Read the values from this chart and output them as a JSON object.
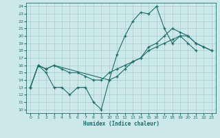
{
  "xlabel": "Humidex (Indice chaleur)",
  "background_color": "#cde8e8",
  "line_color": "#1a6b6b",
  "grid_color": "#a8cccc",
  "xlim": [
    -0.5,
    23.5
  ],
  "ylim": [
    9.5,
    24.5
  ],
  "yticks": [
    10,
    11,
    12,
    13,
    14,
    15,
    16,
    17,
    18,
    19,
    20,
    21,
    22,
    23,
    24
  ],
  "xticks": [
    0,
    1,
    2,
    3,
    4,
    5,
    6,
    7,
    8,
    9,
    10,
    11,
    12,
    13,
    14,
    15,
    16,
    17,
    18,
    19,
    20,
    21,
    22,
    23
  ],
  "line1_x": [
    0,
    1,
    2,
    3,
    4,
    5,
    6,
    7,
    8,
    9,
    10,
    11,
    12,
    13,
    14,
    15,
    16,
    17,
    18,
    19,
    20,
    21
  ],
  "line1_y": [
    13,
    16,
    15,
    13,
    13,
    12,
    13,
    13,
    11,
    10,
    14,
    17.5,
    20,
    22,
    23.2,
    23,
    24,
    21,
    19,
    20,
    19,
    18
  ],
  "line2_x": [
    0,
    1,
    2,
    3,
    4,
    5,
    6,
    7,
    8,
    9,
    10,
    11,
    12,
    13,
    14,
    15,
    16,
    17,
    18,
    19,
    20,
    21,
    22,
    23
  ],
  "line2_y": [
    13,
    16,
    15.5,
    16,
    15.5,
    15,
    15,
    14.5,
    14,
    14,
    15,
    15.5,
    16,
    16.5,
    17,
    18,
    18.5,
    19,
    19.5,
    20,
    20,
    19,
    18.5,
    18
  ],
  "line3_x": [
    0,
    1,
    2,
    3,
    10,
    11,
    12,
    13,
    14,
    15,
    16,
    17,
    18,
    19,
    20,
    21,
    22,
    23
  ],
  "line3_y": [
    13,
    16,
    15.5,
    16,
    14,
    14.5,
    15.5,
    16.5,
    17,
    18.5,
    19,
    20,
    21,
    20.5,
    20,
    19,
    18.5,
    18
  ]
}
